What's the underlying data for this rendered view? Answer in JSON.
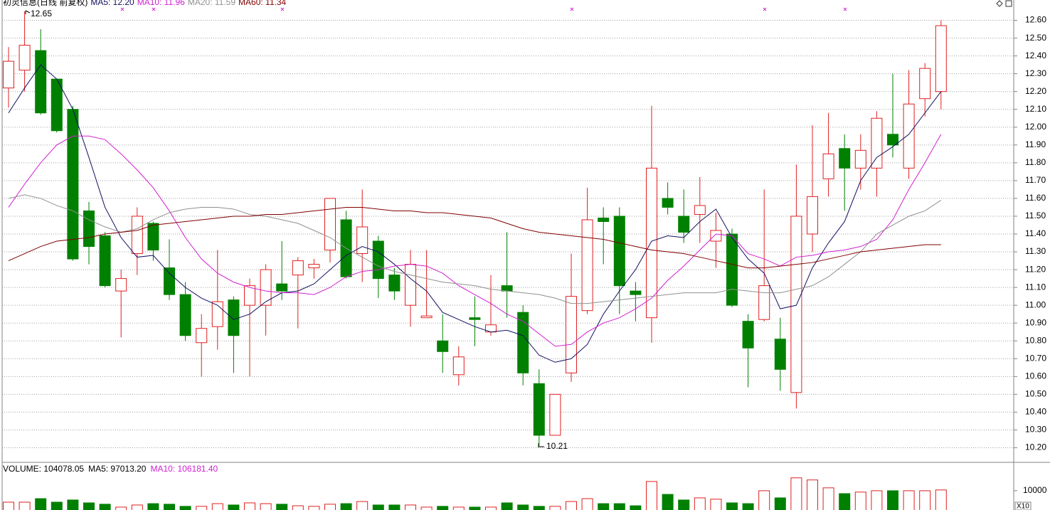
{
  "chart_data": [
    {
      "type": "candlestick",
      "title": "初灵信息(日线 前复权)",
      "up_color": "#e02020",
      "down_color": "#008000",
      "open": [
        12.22,
        12.32,
        12.43,
        12.27,
        12.1,
        11.53,
        11.39,
        11.08,
        11.29,
        11.46,
        11.21,
        11.06,
        10.79,
        10.88,
        11.03,
        11.0,
        11.0,
        11.12,
        11.17,
        11.21,
        11.31,
        11.48,
        11.29,
        11.36,
        11.17,
        11.0,
        10.93,
        10.8,
        10.61,
        10.93,
        10.85,
        11.11,
        10.96,
        10.56,
        10.27,
        10.62,
        10.97,
        11.49,
        11.5,
        11.08,
        10.93,
        11.6,
        11.5,
        11.51,
        11.36,
        11.4,
        10.91,
        10.92,
        10.81,
        10.51,
        11.4,
        11.71,
        11.88,
        11.77,
        11.77,
        11.96,
        11.77,
        12.16,
        12.2
      ],
      "high": [
        12.45,
        12.65,
        12.55,
        12.27,
        12.12,
        11.58,
        11.41,
        11.2,
        11.55,
        11.47,
        11.37,
        11.13,
        10.95,
        11.31,
        11.05,
        11.15,
        11.23,
        11.36,
        11.27,
        11.26,
        11.6,
        11.53,
        11.65,
        11.39,
        11.21,
        11.31,
        11.31,
        10.95,
        10.77,
        11.05,
        11.17,
        11.41,
        11.0,
        10.64,
        10.5,
        11.29,
        11.66,
        11.55,
        11.55,
        11.13,
        12.12,
        11.69,
        11.65,
        11.72,
        11.52,
        11.43,
        10.95,
        11.65,
        10.93,
        11.79,
        12.01,
        12.08,
        11.96,
        11.96,
        12.09,
        12.3,
        12.32,
        12.36,
        12.6
      ],
      "low": [
        12.11,
        12.2,
        12.07,
        11.97,
        11.25,
        11.23,
        11.1,
        10.82,
        11.17,
        11.25,
        11.03,
        10.8,
        10.6,
        10.75,
        10.62,
        10.6,
        10.83,
        11.03,
        10.87,
        11.15,
        11.24,
        11.15,
        11.13,
        11.04,
        11.03,
        10.88,
        10.93,
        10.62,
        10.55,
        10.77,
        10.83,
        10.93,
        10.55,
        10.21,
        10.27,
        10.57,
        10.95,
        11.23,
        10.95,
        10.91,
        10.79,
        11.51,
        11.35,
        11.35,
        11.21,
        10.99,
        10.54,
        10.91,
        10.52,
        10.42,
        11.3,
        11.61,
        11.53,
        11.65,
        11.61,
        11.83,
        11.71,
        12.06,
        12.1
      ],
      "close": [
        12.37,
        12.46,
        12.08,
        11.98,
        11.26,
        11.33,
        11.11,
        11.15,
        11.5,
        11.31,
        11.06,
        10.83,
        10.87,
        11.02,
        10.83,
        11.11,
        11.2,
        11.08,
        11.25,
        11.23,
        11.6,
        11.16,
        11.44,
        11.15,
        11.08,
        11.23,
        10.94,
        10.74,
        10.71,
        10.92,
        10.89,
        11.08,
        10.62,
        10.27,
        10.5,
        11.05,
        11.48,
        11.47,
        11.11,
        11.06,
        11.77,
        11.55,
        11.41,
        11.56,
        11.42,
        11.0,
        10.76,
        11.11,
        10.64,
        11.5,
        11.61,
        11.85,
        11.77,
        11.87,
        12.05,
        11.9,
        12.13,
        12.33,
        12.57
      ],
      "series": [
        {
          "name": "MA5: 12.20",
          "color": "#101060",
          "values": [
            12.08,
            12.22,
            12.35,
            12.27,
            12.1,
            11.83,
            11.55,
            11.38,
            11.27,
            11.28,
            11.18,
            11.1,
            11.04,
            11.0,
            10.92,
            10.95,
            11.02,
            11.07,
            11.08,
            11.12,
            11.2,
            11.28,
            11.33,
            11.3,
            11.23,
            11.15,
            11.08,
            10.96,
            10.92,
            10.88,
            10.85,
            10.86,
            10.83,
            10.72,
            10.68,
            10.7,
            10.78,
            10.95,
            11.08,
            11.2,
            11.36,
            11.39,
            11.38,
            11.47,
            11.54,
            11.38,
            11.26,
            11.18,
            10.98,
            11.0,
            11.21,
            11.35,
            11.47,
            11.7,
            11.83,
            11.89,
            11.96,
            12.08,
            12.2
          ]
        },
        {
          "name": "MA10: 11.96",
          "color": "#d020d0",
          "values": [
            11.55,
            11.68,
            11.8,
            11.9,
            11.95,
            11.95,
            11.93,
            11.85,
            11.76,
            11.66,
            11.53,
            11.38,
            11.26,
            11.18,
            11.13,
            11.1,
            11.08,
            11.07,
            11.07,
            11.06,
            11.1,
            11.16,
            11.19,
            11.2,
            11.22,
            11.23,
            11.22,
            11.18,
            11.11,
            11.06,
            11.01,
            10.95,
            10.91,
            10.84,
            10.77,
            10.78,
            10.85,
            10.9,
            10.93,
            10.98,
            11.04,
            11.14,
            11.22,
            11.31,
            11.4,
            11.39,
            11.29,
            11.26,
            11.22,
            11.27,
            11.28,
            11.3,
            11.31,
            11.33,
            11.37,
            11.48,
            11.65,
            11.8,
            11.96
          ]
        },
        {
          "name": "MA20: 11.59",
          "color": "#909090",
          "values": [
            11.6,
            11.62,
            11.6,
            11.56,
            11.53,
            11.48,
            11.44,
            11.41,
            11.43,
            11.48,
            11.52,
            11.54,
            11.55,
            11.55,
            11.54,
            11.51,
            11.5,
            11.48,
            11.46,
            11.42,
            11.38,
            11.32,
            11.27,
            11.22,
            11.19,
            11.17,
            11.15,
            11.13,
            11.12,
            11.11,
            11.09,
            11.08,
            11.07,
            11.06,
            11.04,
            11.01,
            11.01,
            11.02,
            11.03,
            11.04,
            11.05,
            11.06,
            11.07,
            11.07,
            11.07,
            11.09,
            11.08,
            11.07,
            11.07,
            11.09,
            11.11,
            11.16,
            11.23,
            11.3,
            11.4,
            11.45,
            11.5,
            11.53,
            11.59
          ]
        },
        {
          "name": "MA60: 11.34",
          "color": "#800000",
          "values": [
            11.25,
            11.29,
            11.33,
            11.36,
            11.37,
            11.38,
            11.4,
            11.41,
            11.42,
            11.45,
            11.46,
            11.47,
            11.48,
            11.49,
            11.5,
            11.5,
            11.51,
            11.51,
            11.52,
            11.53,
            11.54,
            11.55,
            11.55,
            11.54,
            11.53,
            11.53,
            11.52,
            11.52,
            11.51,
            11.5,
            11.49,
            11.46,
            11.43,
            11.41,
            11.4,
            11.39,
            11.38,
            11.37,
            11.35,
            11.33,
            11.31,
            11.3,
            11.29,
            11.27,
            11.25,
            11.23,
            11.21,
            11.21,
            11.22,
            11.23,
            11.24,
            11.26,
            11.28,
            11.3,
            11.31,
            11.32,
            11.33,
            11.34,
            11.34
          ]
        }
      ],
      "annotations": [
        {
          "text": "12.65",
          "value": 12.65
        },
        {
          "text": "10.21",
          "value": 10.21
        }
      ],
      "ylim": [
        10.12,
        12.71
      ],
      "yticks": [
        {
          "value": 12.6,
          "label": "12.60"
        },
        {
          "value": 12.5,
          "label": "12.50"
        },
        {
          "value": 12.4,
          "label": "12.40"
        },
        {
          "value": 12.3,
          "label": "12.30"
        },
        {
          "value": 12.2,
          "label": "12.20"
        },
        {
          "value": 12.1,
          "label": "12.10"
        },
        {
          "value": 12.0,
          "label": "12.00"
        },
        {
          "value": 11.9,
          "label": "11.90"
        },
        {
          "value": 11.8,
          "label": "11.80"
        },
        {
          "value": 11.7,
          "label": "11.70"
        },
        {
          "value": 11.6,
          "label": "11.60"
        },
        {
          "value": 11.5,
          "label": "11.50"
        },
        {
          "value": 11.4,
          "label": "11.40"
        },
        {
          "value": 11.3,
          "label": "11.30"
        },
        {
          "value": 11.2,
          "label": "11.20"
        },
        {
          "value": 11.1,
          "label": "11.10"
        },
        {
          "value": 11.0,
          "label": "11.00"
        },
        {
          "value": 10.9,
          "label": "10.90"
        },
        {
          "value": 10.8,
          "label": "10.80"
        },
        {
          "value": 10.7,
          "label": "10.70"
        },
        {
          "value": 10.6,
          "label": "10.60"
        },
        {
          "value": 10.5,
          "label": "10.50"
        },
        {
          "value": 10.4,
          "label": "10.40"
        },
        {
          "value": 10.3,
          "label": "10.30"
        },
        {
          "value": 10.2,
          "label": "10.20"
        }
      ],
      "grid": true
    },
    {
      "type": "bar",
      "title": "VOLUME: 104078.05",
      "indicators": [
        {
          "name": "MA5: 97013.20",
          "color": "#000000"
        },
        {
          "name": "MA10: 106181.40",
          "color": "#d020d0"
        }
      ],
      "values": [
        4070,
        4070,
        5900,
        4070,
        5200,
        3700,
        3000,
        1500,
        2600,
        3300,
        3000,
        1900,
        1900,
        3300,
        2600,
        3700,
        3300,
        3000,
        2200,
        1900,
        3000,
        3300,
        4400,
        2600,
        2600,
        2600,
        1500,
        1900,
        1500,
        1500,
        1500,
        3700,
        2600,
        1900,
        1900,
        4400,
        5900,
        3300,
        3300,
        2200,
        14800,
        8100,
        5200,
        6300,
        5600,
        3700,
        3300,
        10000,
        6300,
        16700,
        15600,
        11500,
        8500,
        9300,
        10000,
        10000,
        10000,
        10000,
        10408
      ],
      "ylim": [
        0,
        24000
      ],
      "yticks": [
        10000
      ],
      "unit_label": "X10"
    }
  ]
}
